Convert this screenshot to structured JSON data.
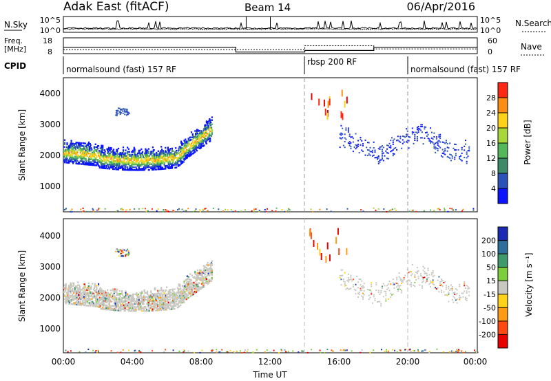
{
  "header": {
    "station": "Adak East (fitACF)",
    "beam": "Beam 14",
    "date": "06/Apr/2016"
  },
  "noise_panel": {
    "left_label": "N.Sky",
    "left_ticks": [
      "10^5",
      "10^0"
    ],
    "right_label": "N.Search",
    "right_ticks": [
      "10^5",
      "10^0"
    ]
  },
  "freq_panel": {
    "left_label_1": "Freq.",
    "left_label_2": "[MHz]",
    "left_ticks": [
      "18",
      "8"
    ],
    "right_label": "Nave",
    "right_ticks": [
      "60",
      "0"
    ]
  },
  "cpid": {
    "label": "CPID",
    "segments": [
      {
        "start": 0,
        "end": 14,
        "name": "normalsound (fast) 157 RF"
      },
      {
        "start": 14,
        "end": 20,
        "name": "rbsp 200 RF"
      },
      {
        "start": 20,
        "end": 24,
        "name": "normalsound (fast) 157 RF"
      }
    ]
  },
  "x_axis": {
    "title": "Time UT",
    "ticks": [
      "00:00",
      "04:00",
      "08:00",
      "12:00",
      "16:00",
      "20:00",
      "00:00"
    ]
  },
  "power_panel": {
    "ylabel": "Slant Range [km]",
    "yticks": [
      "1000",
      "2000",
      "3000",
      "4000"
    ],
    "colorbar_label": "Power [dB]",
    "colorbar_ticks": [
      "4",
      "8",
      "12",
      "16",
      "20",
      "24",
      "28"
    ],
    "colors": [
      "#0a14ff",
      "#2a52b8",
      "#3d8a6a",
      "#52b85a",
      "#a8d838",
      "#ffd21a",
      "#ff8c14",
      "#ff2814",
      "#e60000"
    ]
  },
  "velocity_panel": {
    "ylabel": "Slant Range [km]",
    "yticks": [
      "1000",
      "2000",
      "3000",
      "4000"
    ],
    "colorbar_label": "Velocity [m s⁻¹]",
    "colorbar_ticks": [
      "200",
      "100",
      "50",
      "15",
      "-15",
      "-50",
      "-100",
      "-200"
    ],
    "colors": [
      "#1a2ab4",
      "#2e6e9c",
      "#3e9a6a",
      "#7ccf3a",
      "#c8c8c0",
      "#ffd21a",
      "#ff9a14",
      "#ff4a14",
      "#e60000"
    ]
  },
  "chart_data": {
    "type": "heatmap",
    "x_range_hours": [
      0,
      24
    ],
    "y_range_km": [
      180,
      4500
    ],
    "dashed_time_lines_hours": [
      14,
      20
    ],
    "scatter_bands": [
      {
        "t0": 0.0,
        "t1": 8.5,
        "range_km": [
          1550,
          2900
        ],
        "panel": "both"
      },
      {
        "t0": 3.0,
        "t1": 3.8,
        "range_km": [
          3300,
          3550
        ],
        "panel": "both"
      },
      {
        "t0": 14.0,
        "t1": 16.5,
        "range_km": [
          3200,
          4200
        ],
        "panel": "both"
      },
      {
        "t0": 16.0,
        "t1": 23.5,
        "range_km": [
          1950,
          2950
        ],
        "panel": "both"
      }
    ],
    "noise_sky_log10": 0.5,
    "frequency_mhz": [
      {
        "t0": 0,
        "t1": 10,
        "value": 12
      },
      {
        "t0": 10,
        "t1": 14,
        "value": 9
      },
      {
        "t0": 14,
        "t1": 18,
        "value": 10
      },
      {
        "t0": 18,
        "t1": 24,
        "value": 12
      }
    ],
    "nave": [
      {
        "t0": 0,
        "t1": 14,
        "value": 15
      },
      {
        "t0": 14,
        "t1": 18,
        "value": 30
      },
      {
        "t0": 18,
        "t1": 24,
        "value": 18
      }
    ]
  }
}
